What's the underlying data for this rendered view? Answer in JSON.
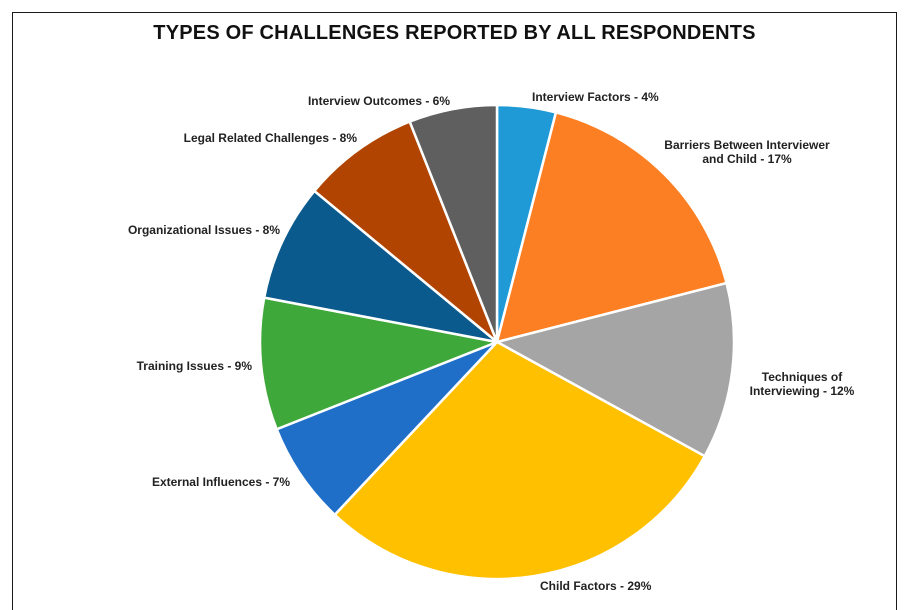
{
  "chart_data": {
    "type": "pie",
    "title": "TYPES OF CHALLENGES REPORTED BY ALL RESPONDENTS",
    "slices": [
      {
        "label": "Interview Factors - 4%",
        "value": 4,
        "color": "#1f9ad6"
      },
      {
        "label": "Barriers Between Interviewer and Child - 17%",
        "lines": [
          "Barriers Between Interviewer",
          "and Child - 17%"
        ],
        "value": 17,
        "color": "#fd7f23"
      },
      {
        "label": "Techniques of Interviewing - 12%",
        "lines": [
          "Techniques of",
          "Interviewing - 12%"
        ],
        "value": 12,
        "color": "#a5a5a5"
      },
      {
        "label": "Child Factors - 29%",
        "value": 29,
        "color": "#ffc000"
      },
      {
        "label": "External Influences - 7%",
        "value": 7,
        "color": "#1f6fc9"
      },
      {
        "label": "Training Issues - 9%",
        "value": 9,
        "color": "#3ea83a"
      },
      {
        "label": "Organizational Issues - 8%",
        "value": 8,
        "color": "#0a5a8e"
      },
      {
        "label": "Legal Related Challenges - 8%",
        "value": 8,
        "color": "#b24401"
      },
      {
        "label": "Interview Outcomes - 6%",
        "value": 6,
        "color": "#5f5f5f"
      }
    ],
    "legend": "none"
  }
}
